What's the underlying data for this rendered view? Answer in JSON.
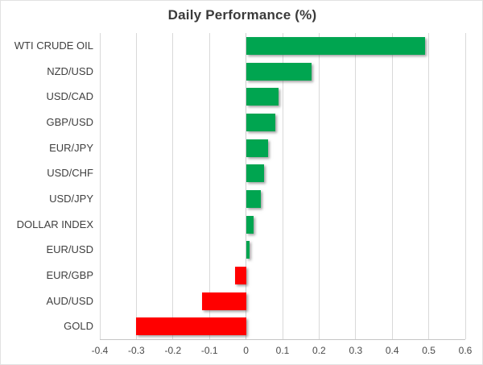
{
  "chart_data": {
    "type": "bar",
    "orientation": "horizontal",
    "title": "Daily Performance (%)",
    "categories": [
      "WTI CRUDE OIL",
      "NZD/USD",
      "USD/CAD",
      "GBP/USD",
      "EUR/JPY",
      "USD/CHF",
      "USD/JPY",
      "DOLLAR INDEX",
      "EUR/USD",
      "EUR/GBP",
      "AUD/USD",
      "GOLD"
    ],
    "values": [
      0.49,
      0.18,
      0.09,
      0.08,
      0.06,
      0.05,
      0.04,
      0.02,
      0.01,
      -0.03,
      -0.12,
      -0.3
    ],
    "xlabel": "",
    "ylabel": "",
    "xlim": [
      -0.4,
      0.6
    ],
    "xticks": [
      -0.4,
      -0.3,
      -0.2,
      -0.1,
      0,
      0.1,
      0.2,
      0.3,
      0.4,
      0.5,
      0.6
    ],
    "xtick_labels": [
      "-0.4",
      "-0.3",
      "-0.2",
      "-0.1",
      "0",
      "0.1",
      "0.2",
      "0.3",
      "0.4",
      "0.5",
      "0.6"
    ],
    "grid": true,
    "legend": "none",
    "positive_color": "#00a550",
    "negative_color": "#ff0000",
    "gridline_color": "#d9d9d9"
  }
}
